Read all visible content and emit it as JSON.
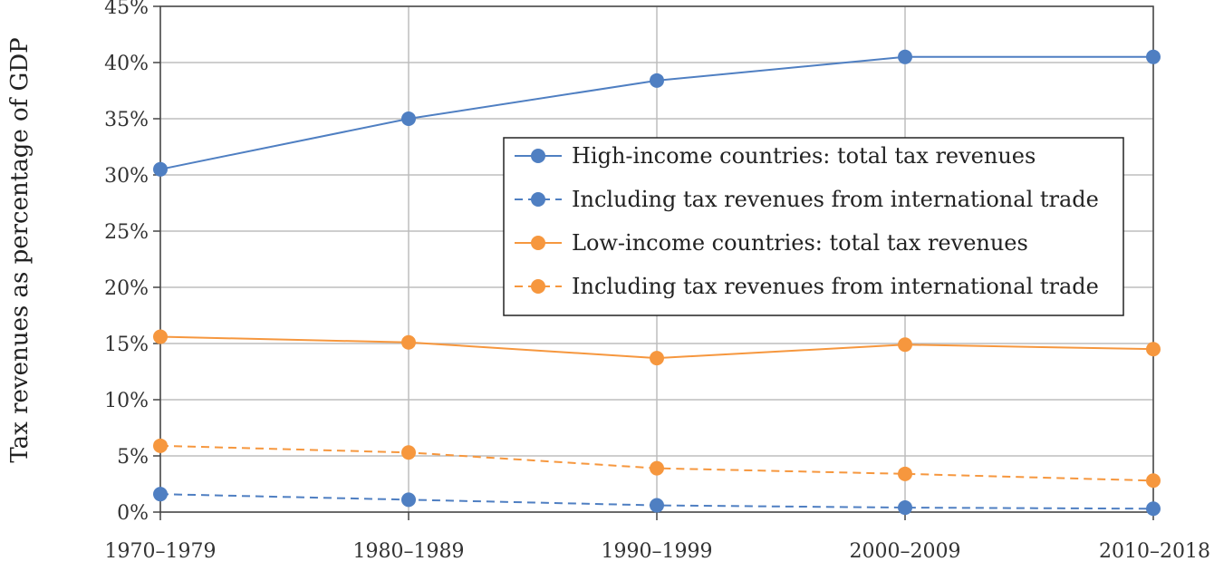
{
  "chart_data": {
    "type": "line",
    "categories": [
      "1970–1979",
      "1980–1989",
      "1990–1999",
      "2000–2009",
      "2010–2018"
    ],
    "ylabel": "Tax revenues as percentage of GDP",
    "xlabel": "",
    "ylim": [
      0,
      45
    ],
    "yticks": [
      0,
      5,
      10,
      15,
      20,
      25,
      30,
      35,
      40,
      45
    ],
    "ytick_labels": [
      "0%",
      "5%",
      "10%",
      "15%",
      "20%",
      "25%",
      "30%",
      "35%",
      "40%",
      "45%"
    ],
    "grid": true,
    "legend_position": "center-right",
    "series": [
      {
        "name": "High-income countries: total tax revenues",
        "values": [
          30.5,
          35.0,
          38.4,
          40.5,
          40.5
        ],
        "color": "#4f7fc2",
        "dashed": false
      },
      {
        "name": "Including tax revenues from international trade",
        "values": [
          1.6,
          1.1,
          0.6,
          0.4,
          0.3
        ],
        "color": "#4f7fc2",
        "dashed": true
      },
      {
        "name": "Low-income countries: total tax revenues",
        "values": [
          15.6,
          15.1,
          13.7,
          14.9,
          14.5
        ],
        "color": "#f6973e",
        "dashed": false
      },
      {
        "name": "Including tax revenues from international trade",
        "values": [
          5.9,
          5.3,
          3.9,
          3.4,
          2.8
        ],
        "color": "#f6973e",
        "dashed": true
      }
    ]
  }
}
